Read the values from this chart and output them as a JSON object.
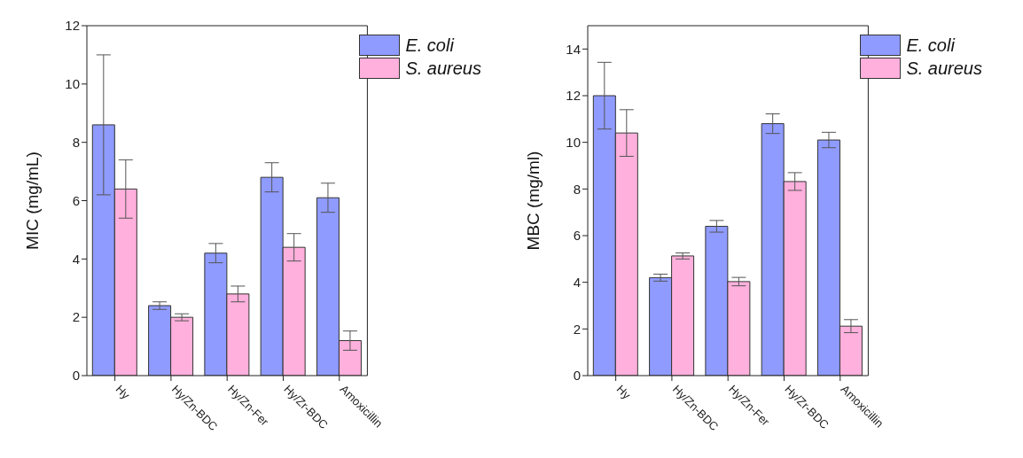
{
  "chart_data": [
    {
      "type": "bar",
      "ylabel": "MIC (mg/mL)",
      "categories": [
        "Hy",
        "Hy/Zn-BDC",
        "Hy/Zn-Fer",
        "Hy/Zr-BDC",
        "Amoxicillin"
      ],
      "ylim": [
        0,
        12
      ],
      "yticks": [
        0,
        2,
        4,
        6,
        8,
        10,
        12
      ],
      "legend": "top right",
      "series": [
        {
          "name": "E. coli",
          "color": "#8f9bff",
          "values": [
            8.6,
            2.4,
            4.2,
            6.8,
            6.1
          ],
          "errors": [
            2.4,
            0.13,
            0.33,
            0.5,
            0.5
          ]
        },
        {
          "name": "S. aureus",
          "color": "#ffb0dc",
          "values": [
            6.4,
            2.0,
            2.8,
            4.4,
            1.2
          ],
          "errors": [
            1.0,
            0.12,
            0.27,
            0.47,
            0.33
          ]
        }
      ]
    },
    {
      "type": "bar",
      "ylabel": "MBC (mg/ml)",
      "categories": [
        "Hy",
        "Hy/Zn-BDC",
        "Hy/Zn-Fer",
        "Hy/Zr-BDC",
        "Amoxicillin"
      ],
      "ylim": [
        0,
        15
      ],
      "yticks": [
        0,
        2,
        4,
        6,
        8,
        10,
        12,
        14
      ],
      "legend": "top right",
      "series": [
        {
          "name": "E. coli",
          "color": "#8f9bff",
          "values": [
            12.0,
            4.2,
            6.4,
            10.8,
            10.1
          ],
          "errors": [
            1.43,
            0.15,
            0.25,
            0.42,
            0.33
          ]
        },
        {
          "name": "S. aureus",
          "color": "#ffb0dc",
          "values": [
            10.4,
            5.13,
            4.03,
            8.32,
            2.12
          ],
          "errors": [
            1.0,
            0.13,
            0.18,
            0.38,
            0.28
          ]
        }
      ]
    }
  ]
}
